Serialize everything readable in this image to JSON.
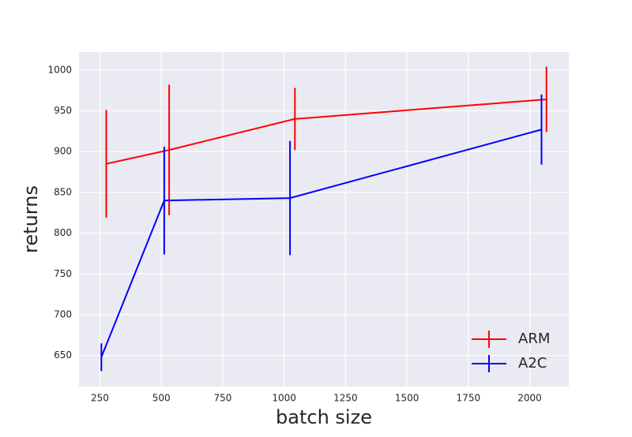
{
  "chart_data": {
    "type": "errorbar-line",
    "x_label": "batch size",
    "y_label": "returns",
    "series": [
      {
        "name": "ARM",
        "color": "#ff0000",
        "x": [
          276,
          532,
          1044,
          2068
        ],
        "values": [
          885,
          902,
          940,
          964
        ],
        "errors": [
          66,
          80,
          38,
          40
        ]
      },
      {
        "name": "A2C",
        "color": "#0000ff",
        "x": [
          256,
          512,
          1024,
          2048
        ],
        "values": [
          648,
          840,
          843,
          927
        ],
        "errors": [
          17,
          66,
          70,
          43
        ]
      }
    ],
    "xlim": [
      165,
      2159
    ],
    "xticks": [
      250,
      500,
      750,
      1000,
      1250,
      1500,
      1750,
      2000
    ],
    "ylim": [
      612,
      1022
    ],
    "yticks": [
      650,
      700,
      750,
      800,
      850,
      900,
      950,
      1000
    ],
    "grid": true,
    "legend": "lower right"
  }
}
